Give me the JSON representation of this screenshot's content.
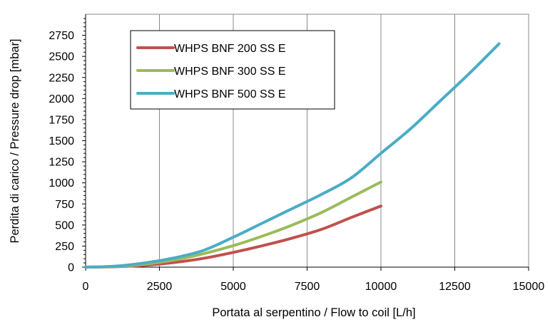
{
  "chart_data": {
    "type": "line",
    "title": "",
    "xlabel": "Portata al serpentino / Flow to coil [L/h]",
    "ylabel": "Perdita di carico / Pressure drop [mbar]",
    "xlim": [
      0,
      15000
    ],
    "ylim": [
      0,
      3000
    ],
    "xticks": [
      0,
      2500,
      5000,
      7500,
      10000,
      12500,
      15000
    ],
    "yticks": [
      0,
      250,
      500,
      750,
      1000,
      1250,
      1500,
      1750,
      2000,
      2250,
      2500,
      2750
    ],
    "x_gridlines": [
      0,
      2500,
      5000,
      7500,
      10000,
      12500,
      15000
    ],
    "y_gridlines": [
      0,
      3000
    ],
    "legend_position": "top-left",
    "series": [
      {
        "name": "WHPS BNF 200 SS E",
        "color": "#C0504D",
        "points": [
          [
            0,
            0
          ],
          [
            1000,
            5
          ],
          [
            2000,
            22
          ],
          [
            3000,
            55
          ],
          [
            4000,
            105
          ],
          [
            5000,
            175
          ],
          [
            6000,
            255
          ],
          [
            7000,
            345
          ],
          [
            8000,
            450
          ],
          [
            9000,
            590
          ],
          [
            10000,
            725
          ]
        ]
      },
      {
        "name": "WHPS BNF 300 SS E",
        "color": "#9BBB59",
        "points": [
          [
            0,
            0
          ],
          [
            1000,
            8
          ],
          [
            2000,
            35
          ],
          [
            3000,
            85
          ],
          [
            4000,
            160
          ],
          [
            5000,
            255
          ],
          [
            6000,
            370
          ],
          [
            7000,
            500
          ],
          [
            8000,
            650
          ],
          [
            9000,
            830
          ],
          [
            10000,
            1010
          ]
        ]
      },
      {
        "name": "WHPS BNF 500 SS E",
        "color": "#4BACC6",
        "points": [
          [
            0,
            0
          ],
          [
            1000,
            12
          ],
          [
            2000,
            50
          ],
          [
            3000,
            110
          ],
          [
            4000,
            200
          ],
          [
            5000,
            355
          ],
          [
            6000,
            525
          ],
          [
            7000,
            695
          ],
          [
            8000,
            865
          ],
          [
            9000,
            1060
          ],
          [
            10000,
            1350
          ],
          [
            11000,
            1640
          ],
          [
            12000,
            1970
          ],
          [
            13000,
            2300
          ],
          [
            14000,
            2650
          ]
        ]
      }
    ]
  }
}
